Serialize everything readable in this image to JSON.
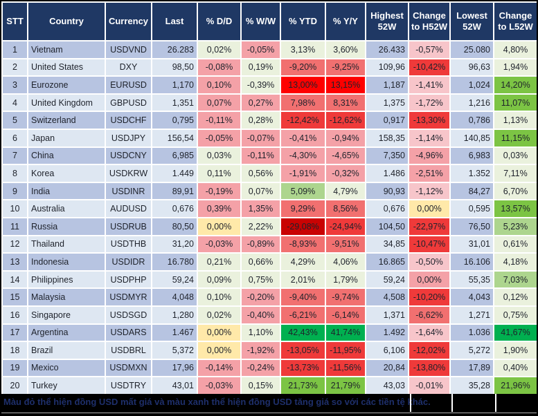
{
  "chart_data": {
    "type": "table",
    "columns": [
      "STT",
      "Country",
      "Currency",
      "Last",
      "% D/D",
      "% W/W",
      "% YTD",
      "% Y/Y",
      "Highest 52W",
      "Change to H52W",
      "Lowest 52W",
      "Change to L52W"
    ],
    "rows": [
      [
        "1",
        "Vietnam",
        "USDVND",
        "26.283",
        "0,02%",
        "-0,05%",
        "3,13%",
        "3,60%",
        "26.433",
        "-0,57%",
        "25.080",
        "4,80%"
      ],
      [
        "2",
        "United States",
        "DXY",
        "98,50",
        "-0,08%",
        "0,19%",
        "-9,20%",
        "-9,25%",
        "109,96",
        "-10,42%",
        "96,63",
        "1,94%"
      ],
      [
        "3",
        "Eurozone",
        "EURUSD",
        "1,170",
        "0,10%",
        "-0,39%",
        "13,00%",
        "13,15%",
        "1,187",
        "-1,41%",
        "1,024",
        "14,20%"
      ],
      [
        "4",
        "United Kingdom",
        "GBPUSD",
        "1,351",
        "0,07%",
        "0,27%",
        "7,98%",
        "8,31%",
        "1,375",
        "-1,72%",
        "1,216",
        "11,07%"
      ],
      [
        "5",
        "Switzerland",
        "USDCHF",
        "0,795",
        "-0,11%",
        "0,28%",
        "-12,42%",
        "-12,62%",
        "0,917",
        "-13,30%",
        "0,786",
        "1,13%"
      ],
      [
        "6",
        "Japan",
        "USDJPY",
        "156,54",
        "-0,05%",
        "-0,07%",
        "-0,41%",
        "-0,94%",
        "158,35",
        "-1,14%",
        "140,85",
        "11,15%"
      ],
      [
        "7",
        "China",
        "USDCNY",
        "6,985",
        "0,03%",
        "-0,11%",
        "-4,30%",
        "-4,65%",
        "7,350",
        "-4,96%",
        "6,983",
        "0,03%"
      ],
      [
        "8",
        "Korea",
        "USDKRW",
        "1.449",
        "0,11%",
        "0,56%",
        "-1,91%",
        "-0,32%",
        "1.486",
        "-2,51%",
        "1.352",
        "7,11%"
      ],
      [
        "9",
        "India",
        "USDINR",
        "89,91",
        "-0,19%",
        "0,07%",
        "5,09%",
        "4,79%",
        "90,93",
        "-1,12%",
        "84,27",
        "6,70%"
      ],
      [
        "10",
        "Australia",
        "AUDUSD",
        "0,676",
        "0,39%",
        "1,35%",
        "9,29%",
        "8,56%",
        "0,676",
        "0,00%",
        "0,595",
        "13,57%"
      ],
      [
        "11",
        "Russia",
        "USDRUB",
        "80,50",
        "0,00%",
        "2,22%",
        "-29,08%",
        "-24,94%",
        "104,50",
        "-22,97%",
        "76,50",
        "5,23%"
      ],
      [
        "12",
        "Thailand",
        "USDTHB",
        "31,20",
        "-0,03%",
        "-0,89%",
        "-8,93%",
        "-9,51%",
        "34,85",
        "-10,47%",
        "31,01",
        "0,61%"
      ],
      [
        "13",
        "Indonesia",
        "USDIDR",
        "16.780",
        "0,21%",
        "0,66%",
        "4,29%",
        "4,06%",
        "16.865",
        "-0,50%",
        "16.106",
        "4,18%"
      ],
      [
        "14",
        "Philippines",
        "USDPHP",
        "59,24",
        "0,09%",
        "0,75%",
        "2,01%",
        "1,79%",
        "59,24",
        "0,00%",
        "55,35",
        "7,03%"
      ],
      [
        "15",
        "Malaysia",
        "USDMYR",
        "4,048",
        "0,10%",
        "-0,20%",
        "-9,40%",
        "-9,74%",
        "4,508",
        "-10,20%",
        "4,043",
        "0,12%"
      ],
      [
        "16",
        "Singapore",
        "USDSGD",
        "1,280",
        "0,02%",
        "-0,40%",
        "-6,21%",
        "-6,14%",
        "1,371",
        "-6,62%",
        "1,271",
        "0,75%"
      ],
      [
        "17",
        "Argentina",
        "USDARS",
        "1.467",
        "0,00%",
        "1,10%",
        "42,43%",
        "41,74%",
        "1.492",
        "-1,64%",
        "1.036",
        "41,67%"
      ],
      [
        "18",
        "Brazil",
        "USDBRL",
        "5,372",
        "0,00%",
        "-1,92%",
        "-13,05%",
        "-11,95%",
        "6,106",
        "-12,02%",
        "5,272",
        "1,90%"
      ],
      [
        "19",
        "Mexico",
        "USDMXN",
        "17,96",
        "-0,14%",
        "-0,24%",
        "-13,73%",
        "-11,56%",
        "20,84",
        "-13,80%",
        "17,89",
        "0,40%"
      ],
      [
        "20",
        "Turkey",
        "USDTRY",
        "43,01",
        "-0,03%",
        "0,15%",
        "21,73%",
        "21,79%",
        "43,03",
        "-0,01%",
        "35,28",
        "21,96%"
      ]
    ]
  },
  "conditional_format_tones": [
    [
      "G0",
      "R1",
      "G0",
      "G0",
      "R0",
      "G0"
    ],
    [
      "R1",
      "G0",
      "R2",
      "R2",
      "R3",
      "G0"
    ],
    [
      "R1",
      "G0",
      "R4",
      "R4",
      "R0",
      "G2"
    ],
    [
      "R1",
      "R1",
      "R2",
      "R2",
      "R0",
      "G2"
    ],
    [
      "R1",
      "G0",
      "R3",
      "R3",
      "R3",
      "G0"
    ],
    [
      "R1",
      "R1",
      "R1",
      "R1",
      "R0",
      "G2"
    ],
    [
      "G0",
      "R1",
      "R1",
      "R1",
      "R1",
      "G0"
    ],
    [
      "G0",
      "G0",
      "R1",
      "R1",
      "R1",
      "G0"
    ],
    [
      "R1",
      "G0",
      "G1",
      "G0",
      "R0",
      "G0"
    ],
    [
      "R1",
      "R1",
      "R2",
      "R2",
      "Y",
      "G2"
    ],
    [
      "Y",
      "G0",
      "R5",
      "R3",
      "R3",
      "G1"
    ],
    [
      "R1",
      "R1",
      "R2",
      "R2",
      "R3",
      "G0"
    ],
    [
      "G0",
      "G0",
      "G0",
      "G0",
      "R0",
      "G0"
    ],
    [
      "G0",
      "G0",
      "G0",
      "G0",
      "R1",
      "G1"
    ],
    [
      "G0",
      "R1",
      "R2",
      "R2",
      "R3",
      "G0"
    ],
    [
      "G0",
      "R1",
      "R2",
      "R2",
      "R2",
      "G0"
    ],
    [
      "Y",
      "G0",
      "G3",
      "G3",
      "R0",
      "G3"
    ],
    [
      "Y",
      "R1",
      "R3",
      "R3",
      "R3",
      "G0"
    ],
    [
      "R1",
      "R1",
      "R3",
      "R3",
      "R3",
      "G0"
    ],
    [
      "R1",
      "G0",
      "G2",
      "G2",
      "R0",
      "G2"
    ]
  ],
  "footer": {
    "note": "Màu đỏ thể hiện đồng USD mất giá và màu xanh thể hiện đồng USD tăng giá so với các tiền tệ khác."
  },
  "palette": {
    "header_bg": "#1F3864",
    "header_text": "#FFFFFF",
    "grid": "#FFFFFF",
    "outer_border": "#000000",
    "row_odd": "#B7C4E1",
    "row_even": "#DEE7F2",
    "cell_text": "#1E222B",
    "footer_bg": "#000000",
    "footer_text": "#1E2F6B",
    "tones": {
      "G0": "#EAF1DD",
      "G1": "#ADD58E",
      "G2": "#7CC444",
      "G3": "#00B050",
      "Y": "#FFE9A9",
      "R0": "#F7C5CA",
      "R1": "#F4A1A7",
      "R2": "#F17070",
      "R3": "#EF3A3A",
      "R4": "#FE0000",
      "R5": "#C90303"
    }
  }
}
